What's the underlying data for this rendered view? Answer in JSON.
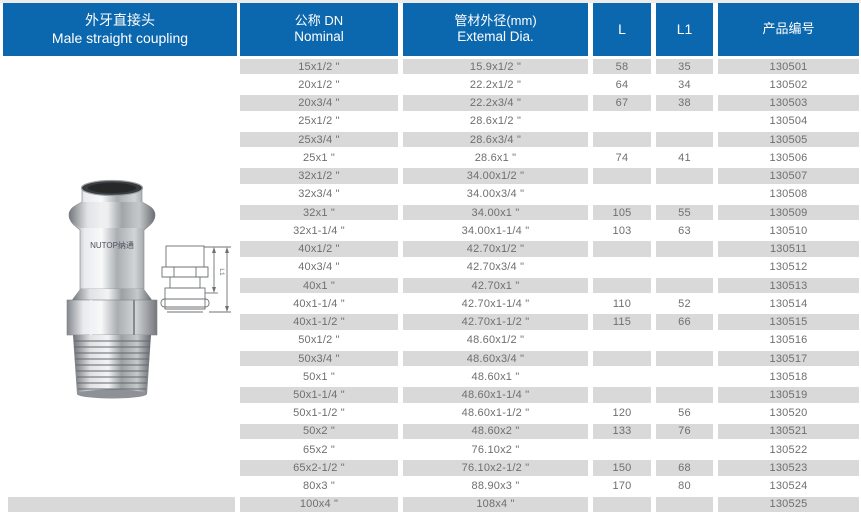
{
  "title_panel": {
    "name_zh": "外牙直接头",
    "name_en": "Male straight coupling"
  },
  "columns": {
    "nominal_zh": "公称 DN",
    "nominal_en": "Nominal",
    "dia_zh": "管材外径(mm)",
    "dia_en": "Extemal Dia.",
    "l": "L",
    "l1": "L1",
    "code": "产品编号"
  },
  "image_panel": {
    "brand": "NUTOP纳通",
    "dim_label": "L1"
  },
  "colors": {
    "header_blue": "#0b67ae",
    "stripe": "#d9d9d9",
    "cell_text": "#6f6f6f"
  },
  "rows": [
    {
      "dn": "15x1/2 \"",
      "dia": "15.9x1/2 \"",
      "l": "58",
      "l1": "35",
      "code": "130501"
    },
    {
      "dn": "20x1/2 \"",
      "dia": "22.2x1/2 \"",
      "l": "64",
      "l1": "34",
      "code": "130502"
    },
    {
      "dn": "20x3/4 \"",
      "dia": "22.2x3/4 \"",
      "l": "67",
      "l1": "38",
      "code": "130503"
    },
    {
      "dn": "25x1/2 \"",
      "dia": "28.6x1/2 \"",
      "l": "",
      "l1": "",
      "code": "130504"
    },
    {
      "dn": "25x3/4 \"",
      "dia": "28.6x3/4 \"",
      "l": "",
      "l1": "",
      "code": "130505"
    },
    {
      "dn": "25x1 \"",
      "dia": "28.6x1 \"",
      "l": "74",
      "l1": "41",
      "code": "130506"
    },
    {
      "dn": "32x1/2 \"",
      "dia": "34.00x1/2 \"",
      "l": "",
      "l1": "",
      "code": "130507"
    },
    {
      "dn": "32x3/4 \"",
      "dia": "34.00x3/4 \"",
      "l": "",
      "l1": "",
      "code": "130508"
    },
    {
      "dn": "32x1 \"",
      "dia": "34.00x1 \"",
      "l": "105",
      "l1": "55",
      "code": "130509"
    },
    {
      "dn": "32x1-1/4 \"",
      "dia": "34.00x1-1/4 \"",
      "l": "103",
      "l1": "63",
      "code": "130510"
    },
    {
      "dn": "40x1/2 \"",
      "dia": "42.70x1/2 \"",
      "l": "",
      "l1": "",
      "code": "130511"
    },
    {
      "dn": "40x3/4 \"",
      "dia": "42.70x3/4 \"",
      "l": "",
      "l1": "",
      "code": "130512"
    },
    {
      "dn": "40x1 \"",
      "dia": "42.70x1 \"",
      "l": "",
      "l1": "",
      "code": "130513"
    },
    {
      "dn": "40x1-1/4 \"",
      "dia": "42.70x1-1/4 \"",
      "l": "110",
      "l1": "52",
      "code": "130514"
    },
    {
      "dn": "40x1-1/2 \"",
      "dia": "42.70x1-1/2 \"",
      "l": "115",
      "l1": "66",
      "code": "130515"
    },
    {
      "dn": "50x1/2 \"",
      "dia": "48.60x1/2 \"",
      "l": "",
      "l1": "",
      "code": "130516"
    },
    {
      "dn": "50x3/4 \"",
      "dia": "48.60x3/4 \"",
      "l": "",
      "l1": "",
      "code": "130517"
    },
    {
      "dn": "50x1 \"",
      "dia": "48.60x1 \"",
      "l": "",
      "l1": "",
      "code": "130518"
    },
    {
      "dn": "50x1-1/4 \"",
      "dia": "48.60x1-1/4 \"",
      "l": "",
      "l1": "",
      "code": "130519"
    },
    {
      "dn": "50x1-1/2 \"",
      "dia": "48.60x1-1/2 \"",
      "l": "120",
      "l1": "56",
      "code": "130520"
    },
    {
      "dn": "50x2 \"",
      "dia": "48.60x2 \"",
      "l": "133",
      "l1": "76",
      "code": "130521"
    },
    {
      "dn": "65x2 \"",
      "dia": "76.10x2 \"",
      "l": "",
      "l1": "",
      "code": "130522"
    },
    {
      "dn": "65x2-1/2 \"",
      "dia": "76.10x2-1/2 \"",
      "l": "150",
      "l1": "68",
      "code": "130523"
    },
    {
      "dn": "80x3 \"",
      "dia": "88.90x3 \"",
      "l": "170",
      "l1": "80",
      "code": "130524"
    },
    {
      "dn": "100x4 \"",
      "dia": "108x4 \"",
      "l": "",
      "l1": "",
      "code": "130525"
    }
  ]
}
